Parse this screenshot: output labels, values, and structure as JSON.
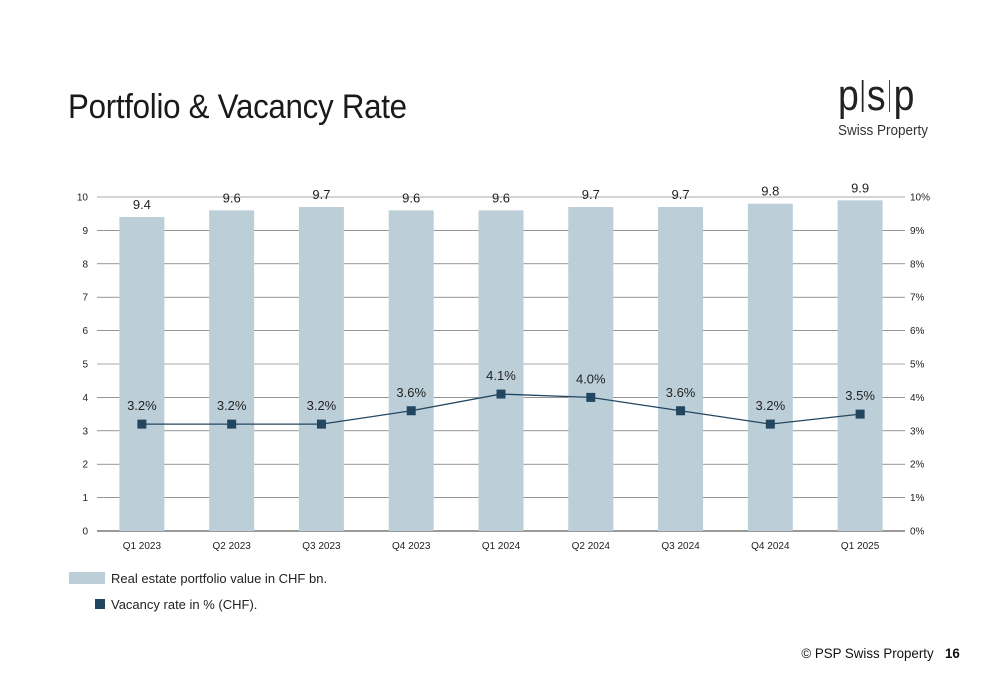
{
  "page": {
    "title": "Portfolio & Vacancy Rate",
    "logo_mark": [
      "p",
      "s",
      "p"
    ],
    "logo_sub": "Swiss Property",
    "footer_copyright": "© PSP Swiss Property",
    "page_number": "16"
  },
  "chart_data": {
    "type": "bar",
    "categories": [
      "Q1 2023",
      "Q2 2023",
      "Q3 2023",
      "Q4 2023",
      "Q1 2024",
      "Q2 2024",
      "Q3 2024",
      "Q4 2024",
      "Q1 2025"
    ],
    "series": [
      {
        "name": "Real estate portfolio value in CHF bn.",
        "type": "bar",
        "axis": "left",
        "values": [
          9.4,
          9.6,
          9.7,
          9.6,
          9.6,
          9.7,
          9.7,
          9.8,
          9.9
        ],
        "labels": [
          "9.4",
          "9.6",
          "9.7",
          "9.6",
          "9.6",
          "9.7",
          "9.7",
          "9.8",
          "9.9"
        ],
        "color": "#bccfd9"
      },
      {
        "name": "Vacancy rate in % (CHF).",
        "type": "line",
        "axis": "right",
        "values": [
          3.2,
          3.2,
          3.2,
          3.6,
          4.1,
          4.0,
          3.6,
          3.2,
          3.5
        ],
        "labels": [
          "3.2%",
          "3.2%",
          "3.2%",
          "3.6%",
          "4.1%",
          "4.0%",
          "3.6%",
          "3.2%",
          "3.5%"
        ],
        "color": "#234660"
      }
    ],
    "y_left": {
      "ylim": [
        0,
        10
      ],
      "ticks": [
        "0",
        "1",
        "2",
        "3",
        "4",
        "5",
        "6",
        "7",
        "8",
        "9",
        "10"
      ]
    },
    "y_right": {
      "ylim": [
        0,
        10
      ],
      "ticks": [
        "0%",
        "1%",
        "2%",
        "3%",
        "4%",
        "5%",
        "6%",
        "7%",
        "8%",
        "9%",
        "10%"
      ]
    },
    "grid": true,
    "legend": "bottom-left",
    "grid_color": "#555555"
  }
}
